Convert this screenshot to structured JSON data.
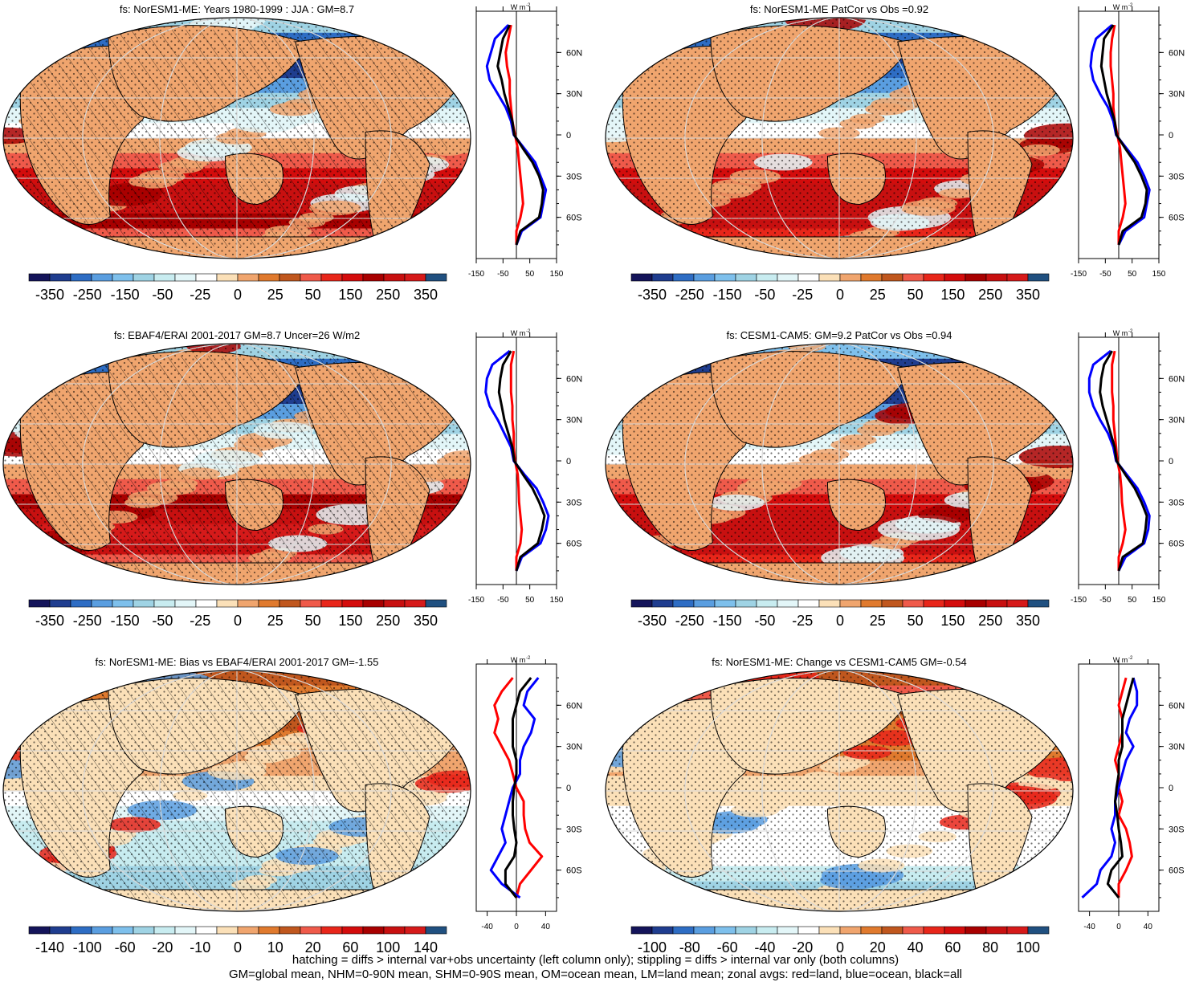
{
  "colors": {
    "profile_land": "#ff0000",
    "profile_ocean": "#0000ff",
    "profile_all": "#000000",
    "graticule": "#d9d9d9",
    "mask": "#ffffff"
  },
  "palettes": {
    "mean": [
      "#14145a",
      "#1f3d8f",
      "#2e6dc4",
      "#5a9ee0",
      "#7ec0ec",
      "#9fd3e4",
      "#c8ecf0",
      "#e3f6f8",
      "#ffffff",
      "#fbe0b8",
      "#f0a56e",
      "#e07a2e",
      "#c0571e",
      "#ef5a4a",
      "#e8261a",
      "#d40c0c",
      "#a80000",
      "#c81010",
      "#d61a1a",
      "#205080"
    ],
    "diff": [
      "#14145a",
      "#1f3d8f",
      "#2e6dc4",
      "#5a9ee0",
      "#7ec0ec",
      "#9fd3e4",
      "#c8ecf0",
      "#e3f6f8",
      "#ffffff",
      "#fbe0b8",
      "#f0a56e",
      "#e07a2e",
      "#c0571e",
      "#ef5a4a",
      "#e8261a",
      "#d40c0c",
      "#a80000",
      "#c81010",
      "#d61a1a",
      "#205080"
    ]
  },
  "icons": {
    "ticks": "tick-marks",
    "hatching": "diagonal-hatch-lines",
    "stippling": "dot-stipple"
  },
  "chart_data": [
    {
      "type": "heatmap",
      "title": "fs: NorESM1-ME: Years 1980-1999 : JJA : GM=8.7",
      "projection": "Robinson",
      "colorbar_labels": [
        "-350",
        "-250",
        "-150",
        "-50",
        "-25",
        "0",
        "25",
        "50",
        "150",
        "250",
        "350"
      ],
      "palette": "mean",
      "hatching": true,
      "stippling": true,
      "profile": {
        "units": "W m-2",
        "x_ticks": [
          "-150",
          "-50",
          "50",
          "150"
        ],
        "xlim": [
          -150,
          150
        ],
        "y_ticks": [
          "60N",
          "30N",
          "0",
          "30S",
          "60S"
        ],
        "lat": [
          80,
          70,
          60,
          50,
          40,
          30,
          20,
          10,
          0,
          -10,
          -20,
          -30,
          -40,
          -50,
          -60,
          -70,
          -80
        ],
        "series": [
          {
            "name": "red",
            "values": [
              -20,
              -30,
              -40,
              -35,
              -25,
              -25,
              -20,
              -15,
              -5,
              5,
              10,
              15,
              20,
              25,
              15,
              0,
              0
            ]
          },
          {
            "name": "blue",
            "values": [
              -30,
              -80,
              -95,
              -110,
              -100,
              -70,
              -40,
              -20,
              -10,
              30,
              70,
              90,
              110,
              100,
              90,
              20,
              0
            ]
          },
          {
            "name": "black",
            "values": [
              -25,
              -50,
              -60,
              -70,
              -55,
              -45,
              -30,
              -15,
              -8,
              25,
              60,
              85,
              100,
              95,
              85,
              15,
              0
            ]
          }
        ]
      }
    },
    {
      "type": "heatmap",
      "title": "fs: NorESM1-ME PatCor vs Obs =0.92",
      "projection": "Robinson",
      "colorbar_labels": [
        "-350",
        "-250",
        "-150",
        "-50",
        "-25",
        "0",
        "25",
        "50",
        "150",
        "250",
        "350"
      ],
      "palette": "mean",
      "hatching": false,
      "stippling": true,
      "profile": {
        "units": "W m-2",
        "x_ticks": [
          "-150",
          "-50",
          "50",
          "150"
        ],
        "xlim": [
          -150,
          150
        ],
        "y_ticks": [
          "60N",
          "30N",
          "0",
          "30S",
          "60S"
        ],
        "lat": [
          80,
          70,
          60,
          50,
          40,
          30,
          20,
          10,
          0,
          -10,
          -20,
          -30,
          -40,
          -50,
          -60,
          -70,
          -80
        ],
        "series": [
          {
            "name": "red",
            "values": [
              -15,
              -25,
              -30,
              -30,
              -25,
              -20,
              -20,
              -15,
              -5,
              5,
              10,
              15,
              20,
              25,
              15,
              0,
              0
            ]
          },
          {
            "name": "blue",
            "values": [
              -25,
              -85,
              -100,
              -105,
              -95,
              -70,
              -40,
              -20,
              -10,
              30,
              70,
              95,
              115,
              105,
              95,
              25,
              0
            ]
          },
          {
            "name": "black",
            "values": [
              -20,
              -55,
              -60,
              -65,
              -55,
              -45,
              -30,
              -15,
              -8,
              25,
              60,
              85,
              105,
              100,
              85,
              15,
              0
            ]
          }
        ]
      }
    },
    {
      "type": "heatmap",
      "title": "fs: EBAF4/ERAI 2001-2017 GM=8.7 Uncer=26 W/m2",
      "projection": "Robinson",
      "colorbar_labels": [
        "-350",
        "-250",
        "-150",
        "-50",
        "-25",
        "0",
        "25",
        "50",
        "150",
        "250",
        "350"
      ],
      "palette": "mean",
      "hatching": true,
      "stippling": true,
      "profile": {
        "units": "W m-2",
        "x_ticks": [
          "-150",
          "-50",
          "50",
          "150"
        ],
        "xlim": [
          -150,
          150
        ],
        "y_ticks": [
          "60N",
          "30N",
          "0",
          "30S",
          "60S"
        ],
        "lat": [
          80,
          70,
          60,
          50,
          40,
          30,
          20,
          10,
          0,
          -10,
          -20,
          -30,
          -40,
          -50,
          -60,
          -70,
          -80
        ],
        "series": [
          {
            "name": "red",
            "values": [
              -10,
              -20,
              -20,
              -20,
              -15,
              -15,
              -10,
              -10,
              -5,
              5,
              8,
              10,
              15,
              20,
              15,
              0,
              0
            ]
          },
          {
            "name": "blue",
            "values": [
              -25,
              -90,
              -110,
              -115,
              -100,
              -70,
              -45,
              -20,
              -10,
              30,
              75,
              100,
              120,
              110,
              90,
              20,
              0
            ]
          },
          {
            "name": "black",
            "values": [
              -20,
              -50,
              -60,
              -65,
              -55,
              -45,
              -30,
              -15,
              -8,
              25,
              60,
              85,
              105,
              95,
              80,
              15,
              0
            ]
          }
        ]
      }
    },
    {
      "type": "heatmap",
      "title": "fs: CESM1-CAM5: GM=9.2 PatCor vs Obs =0.94",
      "projection": "Robinson",
      "colorbar_labels": [
        "-350",
        "-250",
        "-150",
        "-50",
        "-25",
        "0",
        "25",
        "50",
        "150",
        "250",
        "350"
      ],
      "palette": "mean",
      "hatching": false,
      "stippling": true,
      "profile": {
        "units": "W m-2",
        "x_ticks": [
          "-150",
          "-50",
          "50",
          "150"
        ],
        "xlim": [
          -150,
          150
        ],
        "y_ticks": [
          "60N",
          "30N",
          "0",
          "30S",
          "60S"
        ],
        "lat": [
          80,
          70,
          60,
          50,
          40,
          30,
          20,
          10,
          0,
          -10,
          -20,
          -30,
          -40,
          -50,
          -60,
          -70,
          -80
        ],
        "series": [
          {
            "name": "red",
            "values": [
              -15,
              -25,
              -25,
              -25,
              -20,
              -20,
              -15,
              -10,
              -5,
              5,
              10,
              12,
              18,
              25,
              15,
              0,
              0
            ]
          },
          {
            "name": "blue",
            "values": [
              -30,
              -95,
              -110,
              -110,
              -95,
              -70,
              -40,
              -20,
              -10,
              30,
              70,
              95,
              115,
              110,
              95,
              25,
              0
            ]
          },
          {
            "name": "black",
            "values": [
              -25,
              -55,
              -65,
              -70,
              -60,
              -45,
              -30,
              -15,
              -8,
              25,
              60,
              85,
              105,
              100,
              90,
              15,
              0
            ]
          }
        ]
      }
    },
    {
      "type": "heatmap",
      "title": "fs: NorESM1-ME: Bias vs EBAF4/ERAI 2001-2017 GM=-1.55",
      "projection": "Robinson",
      "colorbar_labels": [
        "-140",
        "-100",
        "-60",
        "-20",
        "-10",
        "0",
        "10",
        "20",
        "60",
        "100",
        "140"
      ],
      "palette": "diff",
      "hatching": true,
      "stippling": true,
      "profile": {
        "units": "W m-2",
        "x_ticks": [
          "-40",
          "0",
          "40"
        ],
        "xlim": [
          -55,
          55
        ],
        "y_ticks": [
          "60N",
          "30N",
          "0",
          "30S",
          "60S"
        ],
        "lat": [
          80,
          70,
          60,
          50,
          40,
          30,
          20,
          10,
          0,
          -10,
          -20,
          -30,
          -40,
          -50,
          -60,
          -70,
          -80
        ],
        "series": [
          {
            "name": "red",
            "values": [
              -5,
              -20,
              -30,
              -25,
              -30,
              -20,
              -10,
              -5,
              0,
              10,
              10,
              12,
              18,
              35,
              20,
              5,
              0
            ]
          },
          {
            "name": "blue",
            "values": [
              30,
              15,
              10,
              25,
              20,
              10,
              5,
              5,
              -5,
              -10,
              -15,
              -20,
              -15,
              -25,
              -35,
              -20,
              5
            ]
          },
          {
            "name": "black",
            "values": [
              20,
              5,
              0,
              -5,
              -5,
              -5,
              0,
              0,
              -3,
              -5,
              -5,
              -3,
              0,
              -3,
              -15,
              -15,
              0
            ]
          }
        ]
      }
    },
    {
      "type": "heatmap",
      "title": "fs: NorESM1-ME: Change vs CESM1-CAM5 GM=-0.54",
      "projection": "Robinson",
      "colorbar_labels": [
        "-100",
        "-80",
        "-60",
        "-40",
        "-20",
        "0",
        "20",
        "40",
        "60",
        "80",
        "100"
      ],
      "palette": "diff",
      "hatching": false,
      "stippling": true,
      "profile": {
        "units": "W m-2",
        "x_ticks": [
          "-40",
          "0",
          "40"
        ],
        "xlim": [
          -55,
          55
        ],
        "y_ticks": [
          "60N",
          "30N",
          "0",
          "30S",
          "60S"
        ],
        "lat": [
          80,
          70,
          60,
          50,
          40,
          30,
          20,
          10,
          0,
          -10,
          -20,
          -30,
          -40,
          -50,
          -60,
          -70,
          -80
        ],
        "series": [
          {
            "name": "red",
            "values": [
              10,
              5,
              0,
              5,
              5,
              0,
              -5,
              0,
              0,
              5,
              0,
              10,
              15,
              18,
              10,
              0,
              0
            ]
          },
          {
            "name": "blue",
            "values": [
              20,
              25,
              25,
              15,
              10,
              20,
              10,
              5,
              0,
              -5,
              -5,
              -10,
              -5,
              -10,
              -25,
              -30,
              -50
            ]
          },
          {
            "name": "black",
            "values": [
              20,
              15,
              10,
              5,
              5,
              5,
              0,
              0,
              -3,
              -5,
              -2,
              0,
              3,
              5,
              -10,
              -15,
              0
            ]
          }
        ]
      }
    }
  ],
  "footnotes": {
    "line1": "hatching = diffs > internal var+obs uncertainty (left column only); stippling = diffs > internal var only (both columns)",
    "line2": "GM=global mean, NHM=0-90N mean, SHM=0-90S mean, OM=ocean mean, LM=land mean; zonal avgs: red=land, blue=ocean, black=all"
  }
}
